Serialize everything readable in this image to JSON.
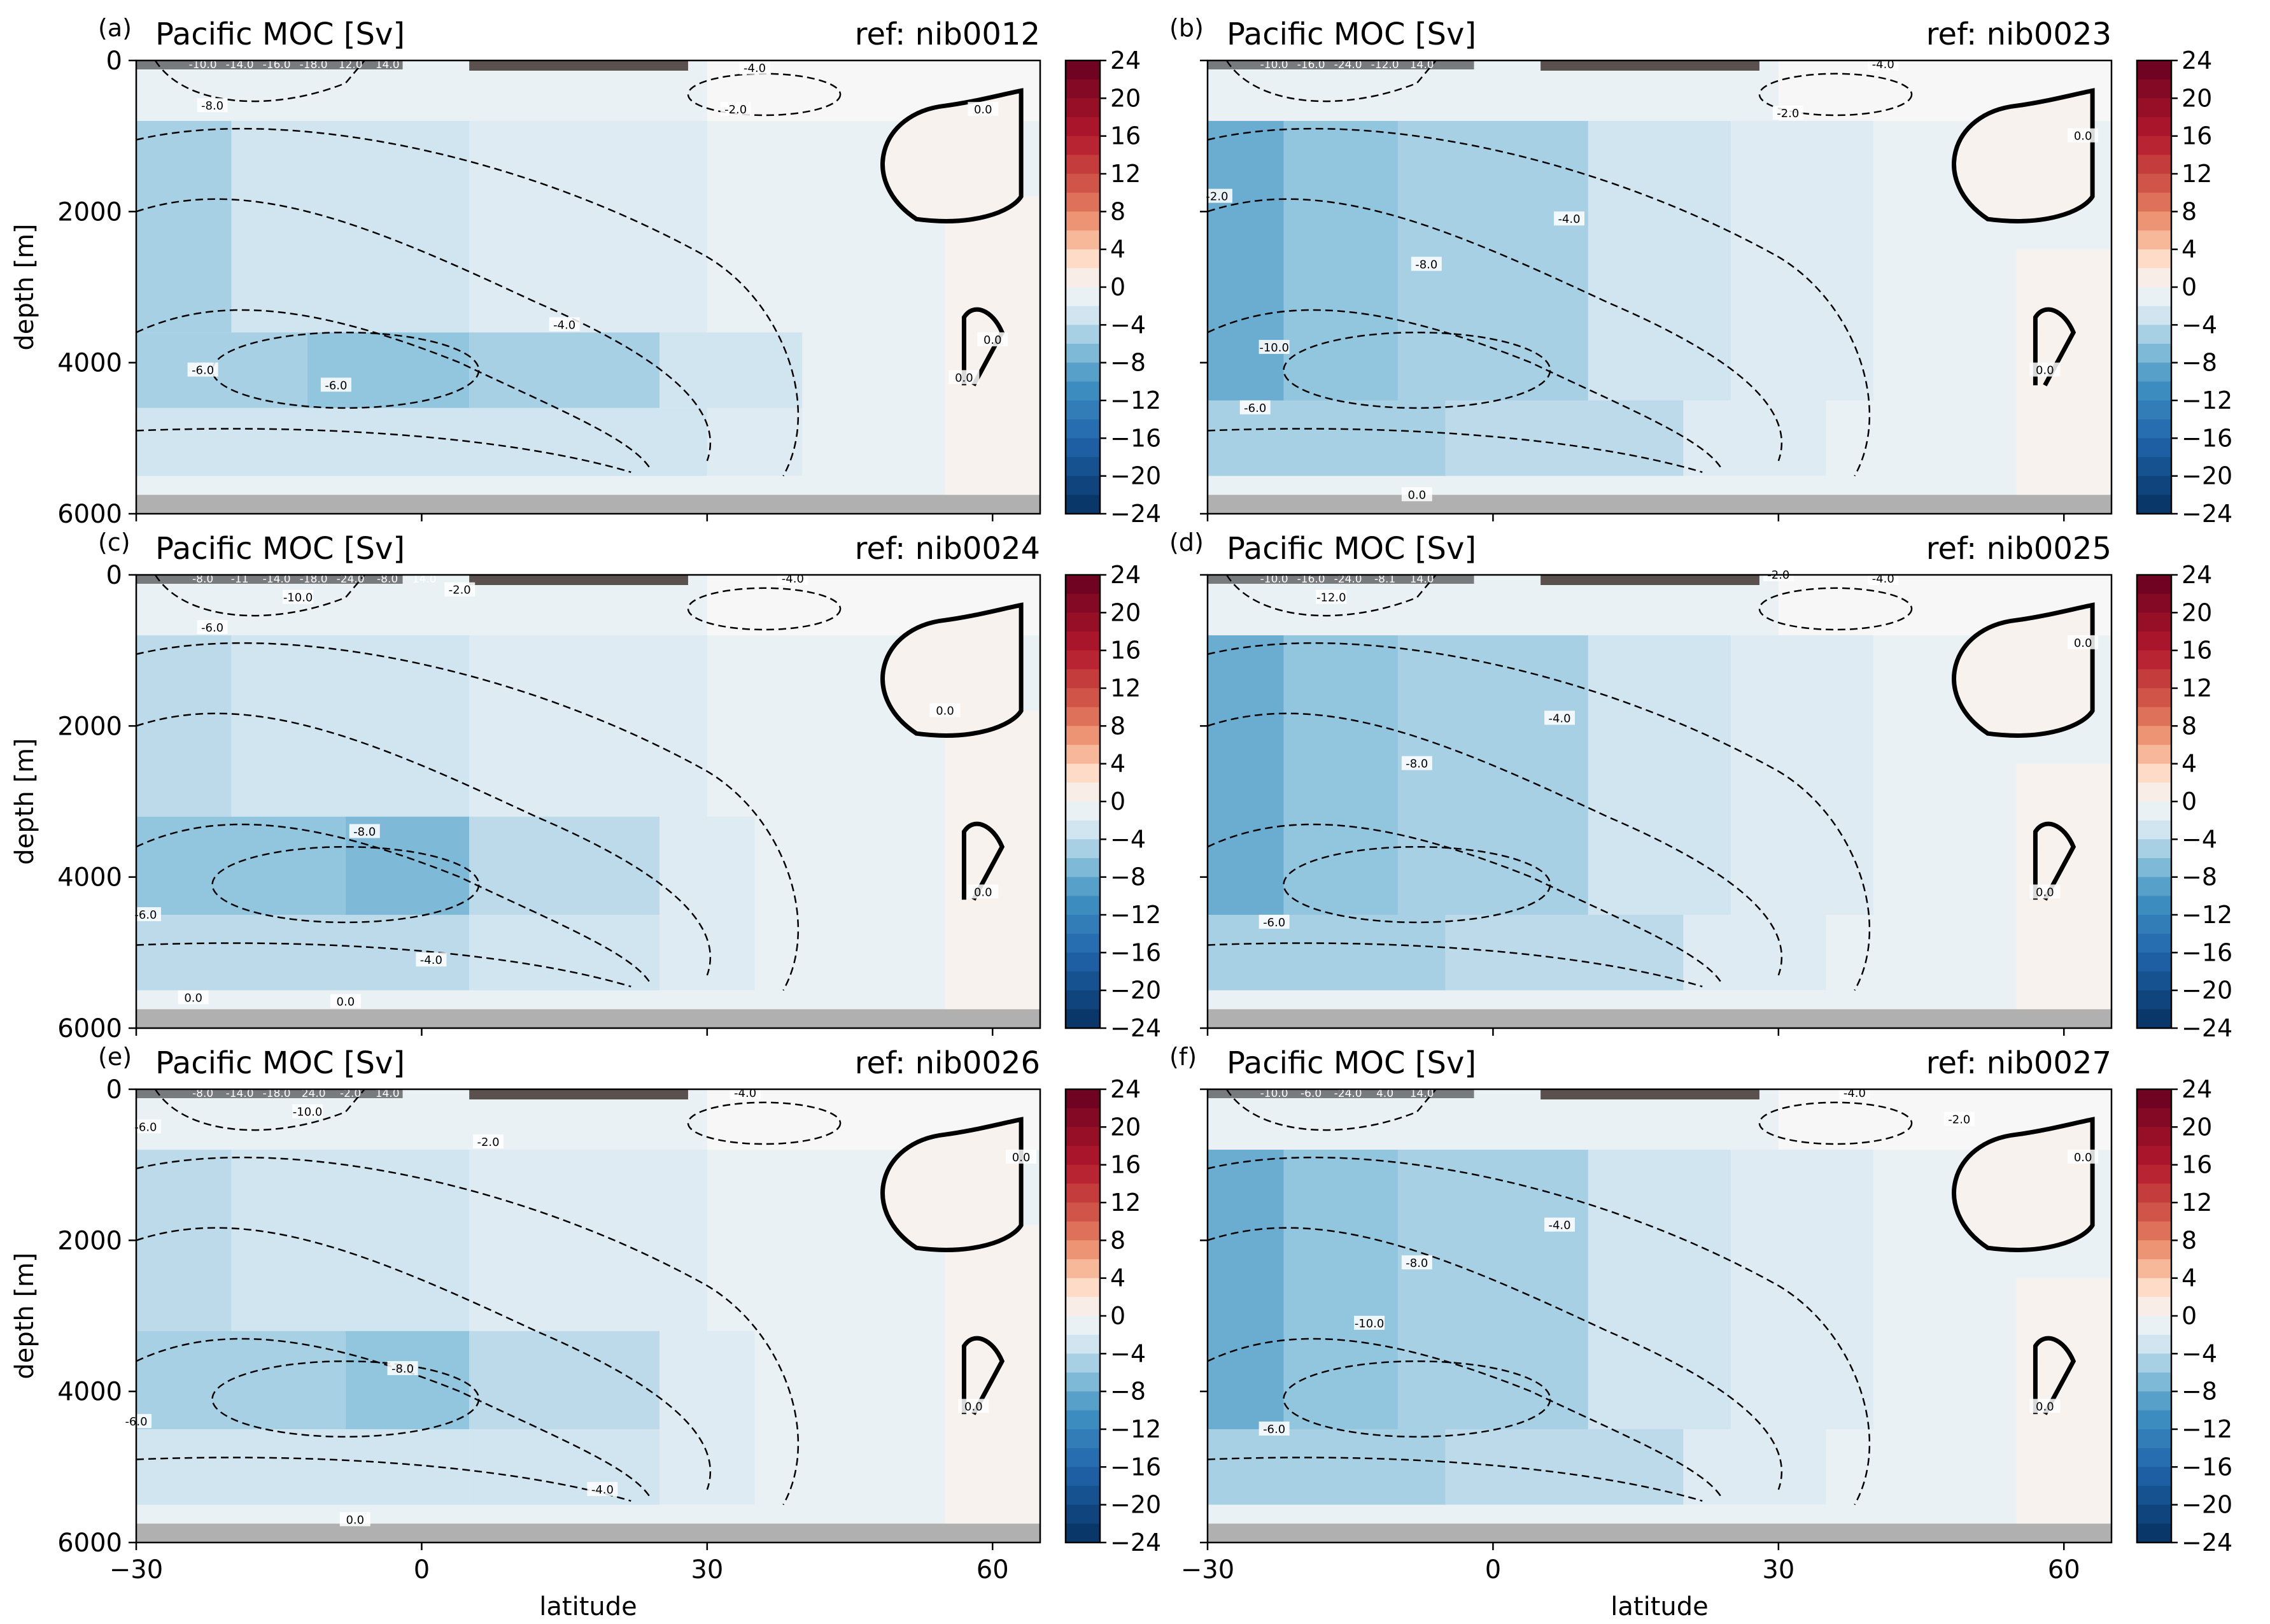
{
  "figure": {
    "xlabel": "latitude",
    "ylabel": "depth [m]",
    "x_ticks": [
      -30,
      0,
      30,
      60
    ],
    "y_ticks": [
      0,
      2000,
      4000,
      6000
    ],
    "cbar_ticks": [
      24,
      20,
      16,
      12,
      8,
      4,
      0,
      -4,
      -8,
      -12,
      -16,
      -20,
      -24
    ],
    "land_color": "#b0b0b0",
    "colormap": "RdBu_r"
  },
  "chart_data": [
    {
      "type": "heatmap",
      "panel": "(a)",
      "title": "Pacific MOC [Sv]",
      "ref": "ref: nib0012",
      "xlim": [
        -30,
        65
      ],
      "ylim": [
        6000,
        0
      ],
      "clim": [
        -24,
        24
      ],
      "cells": [
        [
          -30,
          -2,
          0,
          800,
          -1
        ],
        [
          -2,
          30,
          0,
          800,
          -1
        ],
        [
          30,
          65,
          0,
          800,
          0
        ],
        [
          -30,
          -20,
          800,
          3600,
          -5
        ],
        [
          -20,
          5,
          800,
          3600,
          -3
        ],
        [
          5,
          30,
          800,
          3600,
          -2
        ],
        [
          30,
          50,
          800,
          3600,
          -1
        ],
        [
          -30,
          -12,
          3600,
          4600,
          -5
        ],
        [
          -12,
          5,
          3600,
          4600,
          -6
        ],
        [
          5,
          25,
          3600,
          4600,
          -5
        ],
        [
          25,
          40,
          3600,
          4600,
          -3
        ],
        [
          40,
          55,
          3600,
          4600,
          -1
        ],
        [
          -30,
          30,
          4600,
          5500,
          -3
        ],
        [
          30,
          40,
          4600,
          5500,
          -2
        ],
        [
          -30,
          65,
          5500,
          5750,
          -1
        ],
        [
          55,
          65,
          1800,
          5750,
          0.5
        ]
      ],
      "contours": [
        {
          "level": "-6.0",
          "label_at": [
            -23,
            4100
          ]
        },
        {
          "level": "-6.0",
          "label_at": [
            -9,
            4300
          ]
        },
        {
          "level": "-4.0",
          "label_at": [
            15,
            3500
          ]
        },
        {
          "level": "-2.0",
          "label_at": [
            33,
            650
          ]
        },
        {
          "level": "-4.0",
          "label_at": [
            35,
            100
          ]
        },
        {
          "level": "-8.0",
          "label_at": [
            -22,
            600
          ]
        },
        {
          "level": "0.0",
          "label_at": [
            59,
            650
          ]
        },
        {
          "level": "0.0",
          "label_at": [
            57,
            4200
          ]
        },
        {
          "level": "0.0",
          "label_at": [
            60,
            3700
          ]
        }
      ],
      "surface_labels": [
        "-10.0",
        "-14.0",
        "-16.0",
        "-18.0",
        "12.0",
        "14.0"
      ]
    },
    {
      "type": "heatmap",
      "panel": "(b)",
      "title": "Pacific MOC [Sv]",
      "ref": "ref: nib0023",
      "xlim": [
        -30,
        65
      ],
      "ylim": [
        6000,
        0
      ],
      "clim": [
        -24,
        24
      ],
      "cells": [
        [
          -30,
          -2,
          0,
          800,
          -1
        ],
        [
          -2,
          30,
          0,
          800,
          -1
        ],
        [
          30,
          65,
          0,
          800,
          0
        ],
        [
          -30,
          -22,
          800,
          4500,
          -8
        ],
        [
          -22,
          -10,
          800,
          4500,
          -6
        ],
        [
          -10,
          10,
          800,
          4500,
          -5
        ],
        [
          10,
          25,
          800,
          4500,
          -3
        ],
        [
          25,
          40,
          800,
          4500,
          -2
        ],
        [
          40,
          55,
          800,
          4500,
          -1
        ],
        [
          -30,
          -5,
          4500,
          5500,
          -5
        ],
        [
          -5,
          20,
          4500,
          5500,
          -4
        ],
        [
          20,
          35,
          4500,
          5500,
          -2
        ],
        [
          -30,
          65,
          5500,
          5750,
          -1
        ],
        [
          55,
          65,
          2500,
          5750,
          0.5
        ]
      ],
      "contours": [
        {
          "level": "-2.0",
          "label_at": [
            -29,
            1800
          ]
        },
        {
          "level": "-10.0",
          "label_at": [
            -23,
            3800
          ]
        },
        {
          "level": "-6.0",
          "label_at": [
            -25,
            4600
          ]
        },
        {
          "level": "-8.0",
          "label_at": [
            -7,
            2700
          ]
        },
        {
          "level": "-4.0",
          "label_at": [
            8,
            2100
          ]
        },
        {
          "level": "-2.0",
          "label_at": [
            31,
            700
          ]
        },
        {
          "level": "-4.0",
          "label_at": [
            41,
            50
          ]
        },
        {
          "level": "0.0",
          "label_at": [
            62,
            1000
          ]
        },
        {
          "level": "0.0",
          "label_at": [
            58,
            4100
          ]
        },
        {
          "level": "0.0",
          "label_at": [
            -8,
            5750
          ]
        }
      ],
      "surface_labels": [
        "-10.0",
        "-16.0",
        "-24.0",
        "-12.0",
        "14.0"
      ]
    },
    {
      "type": "heatmap",
      "panel": "(c)",
      "title": "Pacific MOC [Sv]",
      "ref": "ref: nib0024",
      "xlim": [
        -30,
        65
      ],
      "ylim": [
        6000,
        0
      ],
      "clim": [
        -24,
        24
      ],
      "cells": [
        [
          -30,
          -2,
          0,
          800,
          -1
        ],
        [
          -2,
          30,
          0,
          800,
          -1
        ],
        [
          30,
          65,
          0,
          800,
          0
        ],
        [
          -30,
          -20,
          800,
          3200,
          -4
        ],
        [
          -20,
          5,
          800,
          3200,
          -3
        ],
        [
          5,
          30,
          800,
          3200,
          -2
        ],
        [
          30,
          50,
          800,
          3200,
          -1
        ],
        [
          -30,
          -8,
          3200,
          4500,
          -6
        ],
        [
          -8,
          5,
          3200,
          4500,
          -7
        ],
        [
          5,
          25,
          3200,
          4500,
          -4
        ],
        [
          25,
          35,
          3200,
          4500,
          -2
        ],
        [
          -30,
          5,
          4500,
          5500,
          -4
        ],
        [
          5,
          25,
          4500,
          5500,
          -3
        ],
        [
          25,
          35,
          4500,
          5500,
          -2
        ],
        [
          -30,
          65,
          5500,
          5750,
          -1
        ],
        [
          55,
          65,
          1800,
          5750,
          0.5
        ]
      ],
      "contours": [
        {
          "level": "-6.0",
          "label_at": [
            -22,
            700
          ]
        },
        {
          "level": "-10.0",
          "label_at": [
            -13,
            300
          ]
        },
        {
          "level": "-8.0",
          "label_at": [
            -6,
            3400
          ]
        },
        {
          "level": "-6.0",
          "label_at": [
            -29,
            4500
          ]
        },
        {
          "level": "-4.0",
          "label_at": [
            1,
            5100
          ]
        },
        {
          "level": "-2.0",
          "label_at": [
            4,
            200
          ]
        },
        {
          "level": "-4.0",
          "label_at": [
            39,
            50
          ]
        },
        {
          "level": "0.0",
          "label_at": [
            55,
            1800
          ]
        },
        {
          "level": "0.0",
          "label_at": [
            59,
            4200
          ]
        },
        {
          "level": "0.0",
          "label_at": [
            -24,
            5600
          ]
        },
        {
          "level": "0.0",
          "label_at": [
            -8,
            5650
          ]
        }
      ],
      "surface_labels": [
        "-8.0",
        "-11",
        "-14.0",
        "-18.0",
        "-24.0",
        "-8.0",
        "14.0"
      ]
    },
    {
      "type": "heatmap",
      "panel": "(d)",
      "title": "Pacific MOC [Sv]",
      "ref": "ref: nib0025",
      "xlim": [
        -30,
        65
      ],
      "ylim": [
        6000,
        0
      ],
      "clim": [
        -24,
        24
      ],
      "cells": [
        [
          -30,
          -2,
          0,
          800,
          -1
        ],
        [
          -2,
          30,
          0,
          800,
          -1
        ],
        [
          30,
          65,
          0,
          800,
          0
        ],
        [
          -30,
          -22,
          800,
          4500,
          -8
        ],
        [
          -22,
          -10,
          800,
          4500,
          -6
        ],
        [
          -10,
          10,
          800,
          4500,
          -5
        ],
        [
          10,
          25,
          800,
          4500,
          -3
        ],
        [
          25,
          40,
          800,
          4500,
          -2
        ],
        [
          40,
          55,
          800,
          4500,
          -1
        ],
        [
          -30,
          -5,
          4500,
          5500,
          -5
        ],
        [
          -5,
          20,
          4500,
          5500,
          -4
        ],
        [
          20,
          35,
          4500,
          5500,
          -2
        ],
        [
          -30,
          65,
          5500,
          5750,
          -1
        ],
        [
          55,
          65,
          2500,
          5750,
          0.5
        ]
      ],
      "contours": [
        {
          "level": "-12.0",
          "label_at": [
            -17,
            300
          ]
        },
        {
          "level": "-8.0",
          "label_at": [
            -8,
            2500
          ]
        },
        {
          "level": "-4.0",
          "label_at": [
            7,
            1900
          ]
        },
        {
          "level": "-6.0",
          "label_at": [
            -23,
            4600
          ]
        },
        {
          "level": "-2.0",
          "label_at": [
            30,
            0
          ]
        },
        {
          "level": "-4.0",
          "label_at": [
            41,
            50
          ]
        },
        {
          "level": "0.0",
          "label_at": [
            62,
            900
          ]
        },
        {
          "level": "0.0",
          "label_at": [
            58,
            4200
          ]
        }
      ],
      "surface_labels": [
        "-10.0",
        "-16.0",
        "-24.0",
        "-8.1",
        "14.0"
      ]
    },
    {
      "type": "heatmap",
      "panel": "(e)",
      "title": "Pacific MOC [Sv]",
      "ref": "ref: nib0026",
      "xlim": [
        -30,
        65
      ],
      "ylim": [
        6000,
        0
      ],
      "clim": [
        -24,
        24
      ],
      "cells": [
        [
          -30,
          -2,
          0,
          800,
          -1
        ],
        [
          -2,
          30,
          0,
          800,
          -1
        ],
        [
          30,
          65,
          0,
          800,
          0
        ],
        [
          -30,
          -20,
          800,
          3200,
          -4
        ],
        [
          -20,
          5,
          800,
          3200,
          -3
        ],
        [
          5,
          30,
          800,
          3200,
          -2
        ],
        [
          30,
          50,
          800,
          3200,
          -1
        ],
        [
          -30,
          -8,
          3200,
          4500,
          -5
        ],
        [
          -8,
          5,
          3200,
          4500,
          -6
        ],
        [
          5,
          25,
          3200,
          4500,
          -4
        ],
        [
          25,
          35,
          3200,
          4500,
          -2
        ],
        [
          -30,
          5,
          4500,
          5500,
          -3
        ],
        [
          5,
          25,
          4500,
          5500,
          -3
        ],
        [
          25,
          35,
          4500,
          5500,
          -2
        ],
        [
          -30,
          65,
          5500,
          5750,
          -1
        ],
        [
          55,
          65,
          1800,
          5750,
          0.5
        ]
      ],
      "contours": [
        {
          "level": "-6.0",
          "label_at": [
            -29,
            500
          ]
        },
        {
          "level": "-10.0",
          "label_at": [
            -12,
            300
          ]
        },
        {
          "level": "-2.0",
          "label_at": [
            7,
            700
          ]
        },
        {
          "level": "-8.0",
          "label_at": [
            -2,
            3700
          ]
        },
        {
          "level": "-6.0",
          "label_at": [
            -30,
            4400
          ]
        },
        {
          "level": "-4.0",
          "label_at": [
            19,
            5300
          ]
        },
        {
          "level": "-4.0",
          "label_at": [
            34,
            50
          ]
        },
        {
          "level": "0.0",
          "label_at": [
            58,
            4200
          ]
        },
        {
          "level": "0.0",
          "label_at": [
            63,
            900
          ]
        },
        {
          "level": "0.0",
          "label_at": [
            -7,
            5700
          ]
        }
      ],
      "surface_labels": [
        "-8.0",
        "-14.0",
        "-18.0",
        "24.0",
        "-2.0",
        "14.0"
      ]
    },
    {
      "type": "heatmap",
      "panel": "(f)",
      "title": "Pacific MOC [Sv]",
      "ref": "ref: nib0027",
      "xlim": [
        -30,
        65
      ],
      "ylim": [
        6000,
        0
      ],
      "clim": [
        -24,
        24
      ],
      "cells": [
        [
          -30,
          -2,
          0,
          800,
          -1
        ],
        [
          -2,
          30,
          0,
          800,
          -1
        ],
        [
          30,
          65,
          0,
          800,
          0
        ],
        [
          -30,
          -22,
          800,
          4500,
          -8
        ],
        [
          -22,
          -10,
          800,
          4500,
          -6
        ],
        [
          -10,
          10,
          800,
          4500,
          -5
        ],
        [
          10,
          25,
          800,
          4500,
          -3
        ],
        [
          25,
          40,
          800,
          4500,
          -2
        ],
        [
          40,
          55,
          800,
          4500,
          -1
        ],
        [
          -30,
          -5,
          4500,
          5500,
          -5
        ],
        [
          -5,
          20,
          4500,
          5500,
          -4
        ],
        [
          20,
          35,
          4500,
          5500,
          -2
        ],
        [
          -30,
          65,
          5500,
          5750,
          -1
        ],
        [
          55,
          65,
          2500,
          5750,
          0.5
        ]
      ],
      "contours": [
        {
          "level": "-8.0",
          "label_at": [
            -8,
            2300
          ]
        },
        {
          "level": "-10.0",
          "label_at": [
            -13,
            3100
          ]
        },
        {
          "level": "-4.0",
          "label_at": [
            7,
            1800
          ]
        },
        {
          "level": "-6.0",
          "label_at": [
            -23,
            4500
          ]
        },
        {
          "level": "-2.0",
          "label_at": [
            49,
            400
          ]
        },
        {
          "level": "-4.0",
          "label_at": [
            38,
            50
          ]
        },
        {
          "level": "0.0",
          "label_at": [
            62,
            900
          ]
        },
        {
          "level": "0.0",
          "label_at": [
            58,
            4200
          ]
        }
      ],
      "surface_labels": [
        "-10.0",
        "-6.0",
        "-24.0",
        "4.0",
        "14.0"
      ]
    }
  ]
}
